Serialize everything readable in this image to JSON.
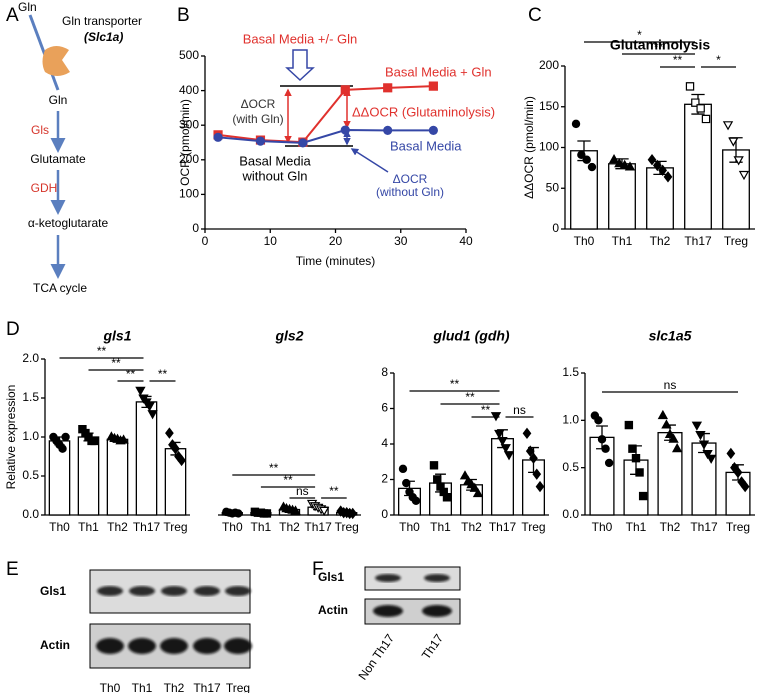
{
  "panels": [
    "A",
    "B",
    "C",
    "D",
    "E",
    "F"
  ],
  "pathway": {
    "substrate": "Gln",
    "transporter": "Gln transporter",
    "transporter_gene": "(Slc1a)",
    "steps": [
      "Gln",
      "Gls",
      "Glutamate",
      "GDH",
      "α-ketoglutarate",
      "TCA cycle"
    ]
  },
  "chart_data": [
    {
      "type": "line",
      "x_label": "Time (minutes)",
      "y_label": "OCR (pmol/min)",
      "x": [
        2,
        8.5,
        15,
        21.5,
        28,
        35
      ],
      "xlim": [
        0,
        40
      ],
      "xticks": [
        0,
        10,
        20,
        30,
        40
      ],
      "ylim": [
        0,
        500
      ],
      "yticks": [
        0,
        100,
        200,
        300,
        400,
        500
      ],
      "series": [
        {
          "name": "Basal Media + Gln",
          "color": "#e0312d",
          "marker": "square",
          "values": [
            272,
            257,
            251,
            402,
            408,
            413
          ]
        },
        {
          "name": "Basal Media",
          "color": "#3547a6",
          "marker": "circle",
          "values": [
            265,
            254,
            249,
            286,
            285,
            285
          ]
        }
      ],
      "annotations": [
        {
          "text": "Basal Media +/- Gln",
          "color": "#e0312d"
        },
        {
          "text": "ΔOCR",
          "color": "#333333"
        },
        {
          "text": "(with Gln)",
          "color": "#333333"
        },
        {
          "text": "Basal Media",
          "color": "#000000"
        },
        {
          "text": "without Gln",
          "color": "#000000"
        },
        {
          "text": "ΔΔOCR (Glutaminolysis)",
          "color": "#e0312d"
        },
        {
          "text": "ΔOCR",
          "color": "#3547a6"
        },
        {
          "text": "(without Gln)",
          "color": "#3547a6"
        }
      ]
    },
    {
      "type": "bar",
      "title": "Glutaminolysis",
      "y_label": "ΔΔOCR (pmol/min)",
      "categories": [
        "Th0",
        "Th1",
        "Th2",
        "Th17",
        "Treg"
      ],
      "values": [
        96,
        80,
        75,
        153,
        97
      ],
      "errors": [
        12,
        6,
        8,
        12,
        15
      ],
      "points": [
        [
          129,
          91,
          85,
          76
        ],
        [
          85,
          80,
          78,
          76
        ],
        [
          85,
          78,
          72,
          64
        ],
        [
          175,
          155,
          148,
          135
        ],
        [
          128,
          108,
          85,
          67
        ]
      ],
      "markers": [
        "circle",
        "triangle",
        "diamond",
        "square",
        "triangle-down"
      ],
      "marker_filled": [
        true,
        true,
        true,
        false,
        false
      ],
      "color": "#000000",
      "ylim": [
        0,
        200
      ],
      "yticks": [
        0,
        50,
        100,
        150,
        200
      ],
      "significance": [
        "*",
        "**",
        "**",
        "*"
      ]
    },
    {
      "type": "bar",
      "title": "gls1",
      "y_label": "Relative expression",
      "categories": [
        "Th0",
        "Th1",
        "Th2",
        "Th17",
        "Treg"
      ],
      "values": [
        0.95,
        1.0,
        0.97,
        1.45,
        0.85
      ],
      "errors": [
        0.05,
        0.05,
        0.02,
        0.07,
        0.08
      ],
      "points": [
        [
          1.0,
          0.95,
          0.9,
          0.85,
          1.0
        ],
        [
          1.1,
          1.05,
          1.0,
          0.95,
          0.95
        ],
        [
          1.0,
          0.98,
          0.97,
          0.95,
          0.96
        ],
        [
          1.6,
          1.5,
          1.45,
          1.4,
          1.3
        ],
        [
          1.05,
          0.9,
          0.85,
          0.75,
          0.7
        ]
      ],
      "markers": [
        "circle",
        "square",
        "triangle",
        "triangle-down",
        "diamond"
      ],
      "marker_filled": [
        true,
        true,
        true,
        true,
        true
      ],
      "color": "#000000",
      "ylim": [
        0,
        2
      ],
      "yticks": [
        {
          "value": 0,
          "label": "0.0"
        },
        {
          "value": 0.5,
          "label": "0.5"
        },
        {
          "value": 1,
          "label": "1.0"
        },
        {
          "value": 1.5,
          "label": "1.5"
        },
        {
          "value": 2,
          "label": "2.0"
        }
      ],
      "significance": [
        "**",
        "**",
        "**",
        "**"
      ]
    },
    {
      "type": "bar",
      "title": "gls2",
      "categories": [
        "Th0",
        "Th1",
        "Th2",
        "Th17",
        "Treg"
      ],
      "values": [
        0.03,
        0.03,
        0.07,
        0.1,
        0.03
      ],
      "errors": [
        0.01,
        0.01,
        0.02,
        0.03,
        0.01
      ],
      "points": [
        [
          0.04,
          0.03,
          0.02,
          0.03,
          0.02
        ],
        [
          0.04,
          0.03,
          0.03,
          0.02,
          0.02
        ],
        [
          0.1,
          0.08,
          0.07,
          0.06,
          0.05
        ],
        [
          0.15,
          0.12,
          0.1,
          0.08,
          0.06
        ],
        [
          0.05,
          0.03,
          0.03,
          0.02,
          0.02
        ]
      ],
      "markers": [
        "circle",
        "square",
        "triangle",
        "triangle-down",
        "diamond"
      ],
      "marker_filled": [
        true,
        true,
        true,
        false,
        true
      ],
      "color": "#000000",
      "ylim": [
        0,
        2
      ],
      "significance": [
        "**",
        "**",
        "ns",
        "**"
      ]
    },
    {
      "type": "bar",
      "title": "glud1 (gdh)",
      "categories": [
        "Th0",
        "Th1",
        "Th2",
        "Th17",
        "Treg"
      ],
      "values": [
        1.5,
        1.8,
        1.7,
        4.3,
        3.1
      ],
      "errors": [
        0.4,
        0.5,
        0.3,
        0.5,
        0.7
      ],
      "points": [
        [
          2.6,
          1.8,
          1.3,
          1.0,
          0.8
        ],
        [
          2.8,
          2.0,
          1.6,
          1.3,
          1.0
        ],
        [
          2.2,
          1.9,
          1.7,
          1.5,
          1.2
        ],
        [
          5.6,
          4.6,
          4.2,
          3.8,
          3.4
        ],
        [
          4.6,
          3.6,
          3.2,
          2.3,
          1.6
        ]
      ],
      "markers": [
        "circle",
        "square",
        "triangle",
        "triangle-down",
        "diamond"
      ],
      "marker_filled": [
        true,
        true,
        true,
        true,
        true
      ],
      "color": "#000000",
      "ylim": [
        0,
        8
      ],
      "yticks": [
        0,
        2,
        4,
        6,
        8
      ],
      "significance": [
        "**",
        "**",
        "**",
        "ns"
      ]
    },
    {
      "type": "bar",
      "title": "slc1a5",
      "categories": [
        "Th0",
        "Th1",
        "Th2",
        "Th17",
        "Treg"
      ],
      "values": [
        0.82,
        0.58,
        0.87,
        0.76,
        0.45
      ],
      "errors": [
        0.12,
        0.15,
        0.08,
        0.1,
        0.08
      ],
      "points": [
        [
          1.05,
          1.0,
          0.8,
          0.7,
          0.55
        ],
        [
          0.95,
          0.7,
          0.6,
          0.45,
          0.2
        ],
        [
          1.05,
          0.95,
          0.85,
          0.8,
          0.7
        ],
        [
          0.95,
          0.85,
          0.75,
          0.65,
          0.6
        ],
        [
          0.65,
          0.5,
          0.45,
          0.35,
          0.3
        ]
      ],
      "markers": [
        "circle",
        "square",
        "triangle",
        "triangle-down",
        "diamond"
      ],
      "marker_filled": [
        true,
        true,
        true,
        true,
        true
      ],
      "color": "#000000",
      "ylim": [
        0,
        1.5
      ],
      "yticks": [
        {
          "value": 0,
          "label": "0.0"
        },
        {
          "value": 0.5,
          "label": "0.5"
        },
        {
          "value": 1,
          "label": "1.0"
        },
        {
          "value": 1.5,
          "label": "1.5"
        }
      ],
      "significance": [
        "ns"
      ]
    }
  ],
  "blot_e": {
    "rows": [
      "Gls1",
      "Actin"
    ],
    "lanes": [
      "Th0",
      "Th1",
      "Th2",
      "Th17",
      "Treg"
    ]
  },
  "blot_f": {
    "rows": [
      "Gls1",
      "Actin"
    ],
    "lanes": [
      "Non Th17",
      "Th17"
    ]
  }
}
